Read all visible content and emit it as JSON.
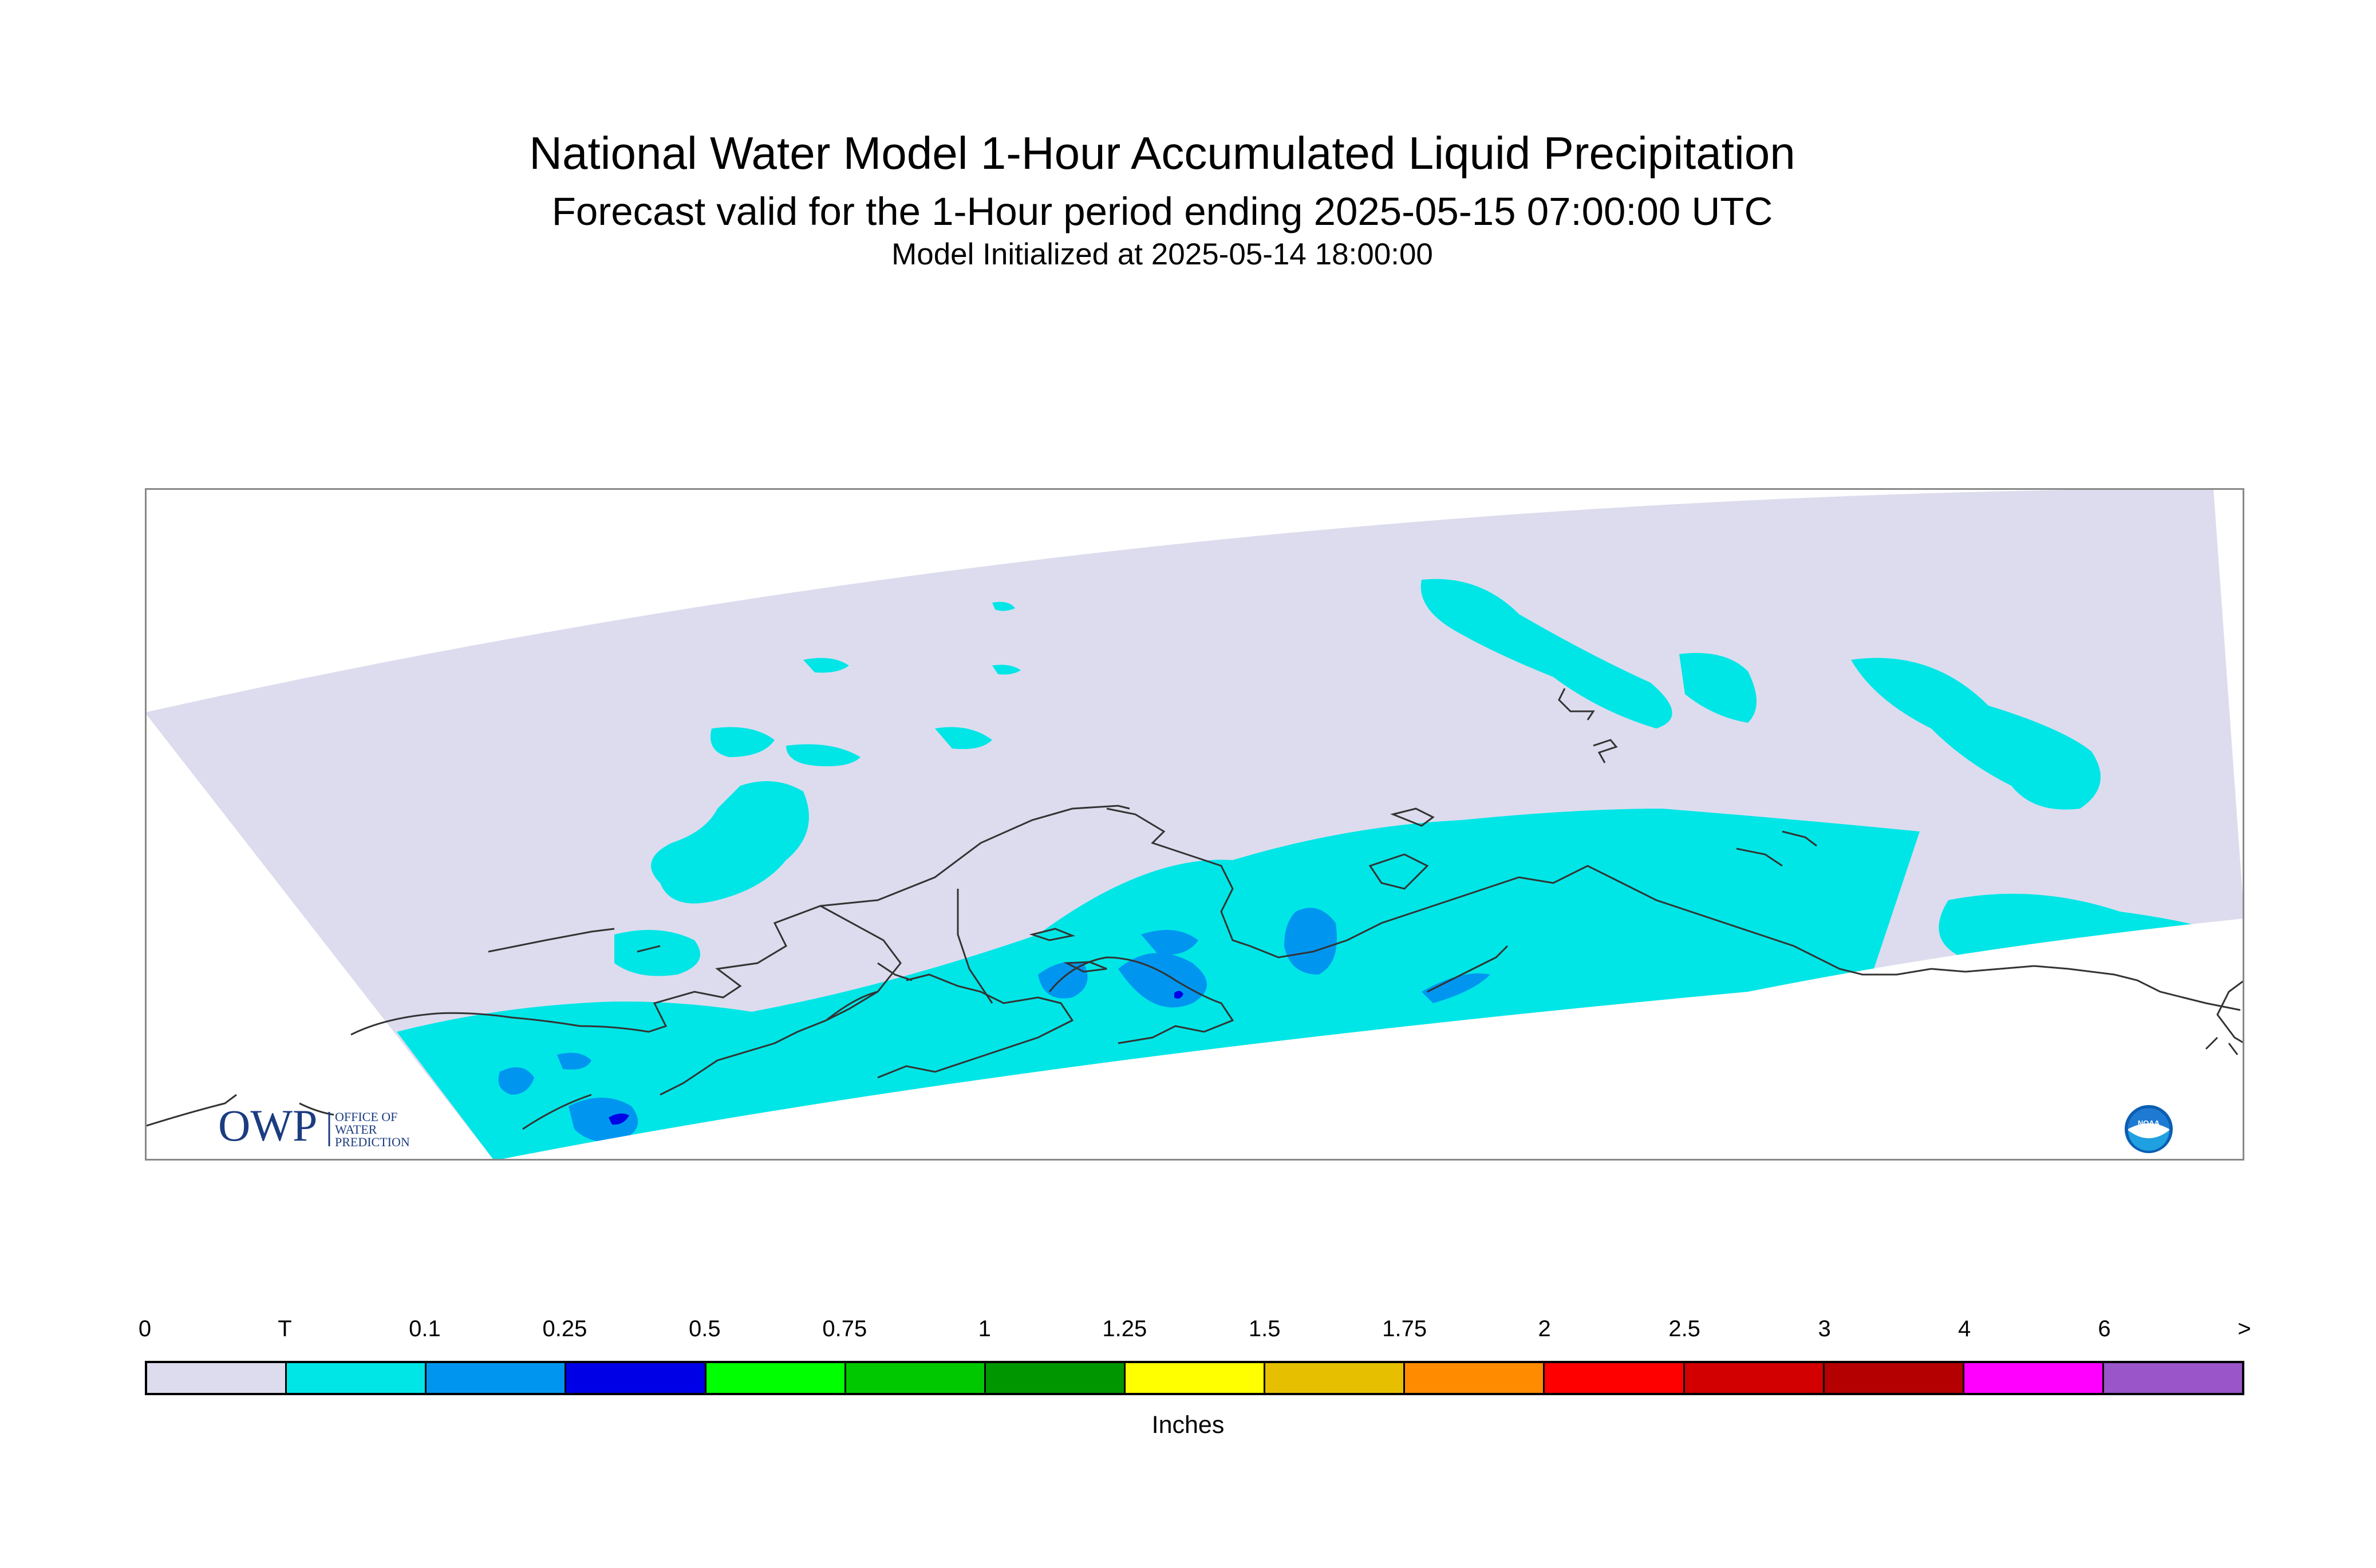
{
  "header": {
    "title": "National Water Model 1-Hour Accumulated Liquid Precipitation",
    "subtitle": "Forecast valid for the 1-Hour period ending 2025-05-15 07:00:00 UTC",
    "init": "Model Initialized at 2025-05-14 18:00:00"
  },
  "logos": {
    "owp_letters": "OWP",
    "owp_text": [
      "OFFICE OF",
      "WATER",
      "PREDICTION"
    ],
    "noaa_text": "NOAA"
  },
  "colors": {
    "zero": "#dcdcee",
    "trace": "#00e6e6",
    "light": "#0096f0",
    "dark": "#0000e6",
    "coast": "#333333",
    "owp_blue": "#1c3c80"
  },
  "legend": {
    "labels": [
      "0",
      "T",
      "0.1",
      "0.25",
      "0.5",
      "0.75",
      "1",
      "1.25",
      "1.5",
      "1.75",
      "2",
      "2.5",
      "3",
      "4",
      "6",
      ">"
    ],
    "colors": [
      "#dcdcee",
      "#00e6e6",
      "#0096f0",
      "#0000e6",
      "#00ff00",
      "#00c800",
      "#009600",
      "#ffff00",
      "#e6c000",
      "#ff8c00",
      "#ff0000",
      "#d20000",
      "#b40000",
      "#ff00ff",
      "#9a55c8"
    ],
    "units": "Inches"
  }
}
